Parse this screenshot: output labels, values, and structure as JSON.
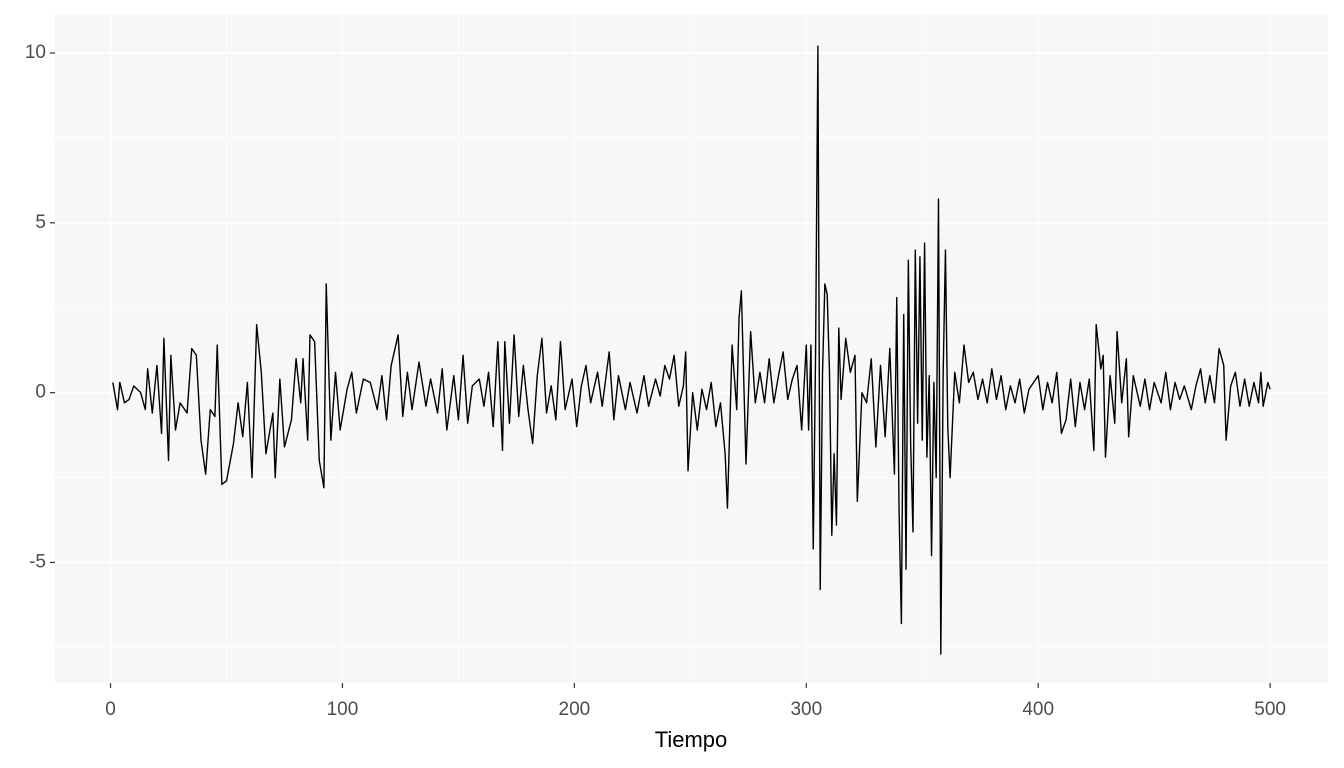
{
  "chart_data": {
    "type": "line",
    "xlabel": "Tiempo",
    "color": "#000000",
    "panel_color": "#f7f7f7",
    "grid_color": "#ffffff",
    "grid": true,
    "xlim": [
      -23.95,
      524.95
    ],
    "ylim": [
      -8.55,
      11.15
    ],
    "xticks": [
      0,
      100,
      200,
      300,
      400,
      500
    ],
    "yticks": [
      -5,
      0,
      5,
      10
    ],
    "x_minor_ticks": [
      50,
      150,
      250,
      350,
      450
    ],
    "y_minor_ticks": [
      -7.5,
      -2.5,
      2.5,
      7.5
    ],
    "x": [
      1,
      3,
      4,
      6,
      8,
      10,
      13,
      15,
      16,
      18,
      20,
      22,
      23,
      25,
      26,
      28,
      30,
      33,
      35,
      37,
      39,
      41,
      43,
      45,
      46,
      48,
      50,
      53,
      55,
      57,
      59,
      61,
      63,
      65,
      67,
      70,
      71,
      73,
      75,
      78,
      80,
      82,
      83,
      85,
      86,
      88,
      90,
      92,
      93,
      95,
      97,
      99,
      102,
      104,
      106,
      109,
      112,
      115,
      117,
      119,
      121,
      124,
      126,
      128,
      130,
      133,
      136,
      138,
      141,
      143,
      145,
      148,
      150,
      152,
      154,
      156,
      159,
      161,
      163,
      165,
      167,
      169,
      170,
      172,
      174,
      176,
      178,
      180,
      182,
      184,
      186,
      188,
      190,
      192,
      194,
      196,
      199,
      201,
      203,
      205,
      207,
      210,
      212,
      215,
      217,
      219,
      222,
      224,
      227,
      230,
      232,
      235,
      237,
      239,
      241,
      243,
      245,
      247,
      248,
      249,
      251,
      253,
      255,
      257,
      259,
      261,
      263,
      265,
      266,
      268,
      270,
      271,
      272,
      274,
      276,
      278,
      280,
      282,
      284,
      286,
      288,
      290,
      292,
      294,
      296,
      298,
      300,
      301,
      302,
      303,
      304,
      305,
      306,
      307,
      308,
      309,
      310,
      311,
      312,
      313,
      314,
      315,
      317,
      319,
      321,
      322,
      324,
      326,
      328,
      330,
      332,
      334,
      336,
      338,
      339,
      340,
      341,
      342,
      343,
      344,
      345,
      346,
      347,
      348,
      349,
      350,
      351,
      352,
      353,
      354,
      355,
      356,
      357,
      358,
      359,
      360,
      361,
      362,
      364,
      366,
      368,
      370,
      372,
      374,
      376,
      378,
      380,
      382,
      384,
      386,
      388,
      390,
      392,
      394,
      396,
      398,
      400,
      402,
      404,
      406,
      408,
      410,
      412,
      414,
      416,
      418,
      420,
      422,
      424,
      425,
      427,
      428,
      429,
      431,
      433,
      434,
      436,
      438,
      439,
      441,
      444,
      446,
      448,
      450,
      453,
      455,
      457,
      459,
      461,
      463,
      466,
      468,
      470,
      472,
      474,
      476,
      478,
      480,
      481,
      483,
      485,
      487,
      489,
      491,
      493,
      495,
      496,
      497,
      499,
      500
    ],
    "values": [
      0.3,
      -0.5,
      0.3,
      -0.3,
      -0.2,
      0.2,
      0,
      -0.5,
      0.7,
      -0.6,
      0.8,
      -1.2,
      1.6,
      -2,
      1.1,
      -1.1,
      -0.3,
      -0.6,
      1.3,
      1.1,
      -1.4,
      -2.4,
      -0.5,
      -0.7,
      1.4,
      -2.7,
      -2.6,
      -1.5,
      -0.3,
      -1.3,
      0.3,
      -2.5,
      2,
      0.6,
      -1.8,
      -0.6,
      -2.5,
      0.4,
      -1.6,
      -0.8,
      1,
      -0.3,
      1,
      -1.4,
      1.7,
      1.5,
      -2,
      -2.8,
      3.2,
      -1.4,
      0.6,
      -1.1,
      0.1,
      0.6,
      -0.6,
      0.4,
      0.3,
      -0.5,
      0.5,
      -0.8,
      0.8,
      1.7,
      -0.7,
      0.6,
      -0.5,
      0.9,
      -0.4,
      0.4,
      -0.6,
      0.7,
      -1.1,
      0.5,
      -0.8,
      1.1,
      -0.9,
      0.2,
      0.4,
      -0.4,
      0.6,
      -1,
      1.5,
      -1.7,
      1.5,
      -0.9,
      1.7,
      -0.7,
      0.8,
      -0.5,
      -1.5,
      0.5,
      1.6,
      -0.6,
      0.2,
      -0.8,
      1.5,
      -0.5,
      0.4,
      -1,
      0.2,
      0.8,
      -0.3,
      0.6,
      -0.4,
      1.2,
      -0.8,
      0.5,
      -0.5,
      0.3,
      -0.6,
      0.5,
      -0.4,
      0.4,
      -0.1,
      0.8,
      0.4,
      1.1,
      -0.4,
      0.2,
      1.2,
      -2.3,
      0,
      -1.1,
      0.1,
      -0.5,
      0.3,
      -1,
      -0.3,
      -1.8,
      -3.4,
      1.4,
      -0.5,
      2.2,
      3,
      -2.1,
      1.8,
      -0.3,
      0.6,
      -0.3,
      1,
      -0.3,
      0.5,
      1.2,
      -0.2,
      0.4,
      0.8,
      -1.1,
      1.4,
      -1.1,
      1.4,
      -4.6,
      1.2,
      10.2,
      -5.8,
      0.6,
      3.2,
      2.9,
      0.6,
      -4.2,
      -1.8,
      -3.9,
      1.9,
      -0.2,
      1.6,
      0.6,
      1.1,
      -3.2,
      0,
      -0.3,
      1,
      -1.6,
      0.8,
      -1.3,
      1.3,
      -2.4,
      2.8,
      -3.5,
      -6.8,
      2.3,
      -5.2,
      3.9,
      -1.5,
      -4.1,
      4.2,
      -0.9,
      4,
      -1.4,
      4.4,
      -1.9,
      0.5,
      -4.8,
      0.3,
      -2.5,
      5.7,
      -7.7,
      0.5,
      4.2,
      -1,
      -2.5,
      0.6,
      -0.3,
      1.4,
      0.3,
      0.6,
      -0.2,
      0.4,
      -0.3,
      0.7,
      -0.2,
      0.5,
      -0.5,
      0.2,
      -0.3,
      0.4,
      -0.6,
      0.1,
      0.3,
      0.5,
      -0.5,
      0.3,
      -0.3,
      0.6,
      -1.2,
      -0.8,
      0.4,
      -1,
      0.3,
      -0.5,
      0.4,
      -1.7,
      2,
      0.7,
      1.1,
      -1.9,
      0.5,
      -0.9,
      1.8,
      -0.3,
      1,
      -1.3,
      0.5,
      -0.4,
      0.4,
      -0.5,
      0.3,
      -0.3,
      0.6,
      -0.5,
      0.3,
      -0.2,
      0.2,
      -0.5,
      0.2,
      0.7,
      -0.3,
      0.5,
      -0.3,
      1.3,
      0.8,
      -1.4,
      0.2,
      0.6,
      -0.4,
      0.4,
      -0.4,
      0.3,
      -0.3,
      0.6,
      -0.4,
      0.3,
      0.1
    ]
  }
}
